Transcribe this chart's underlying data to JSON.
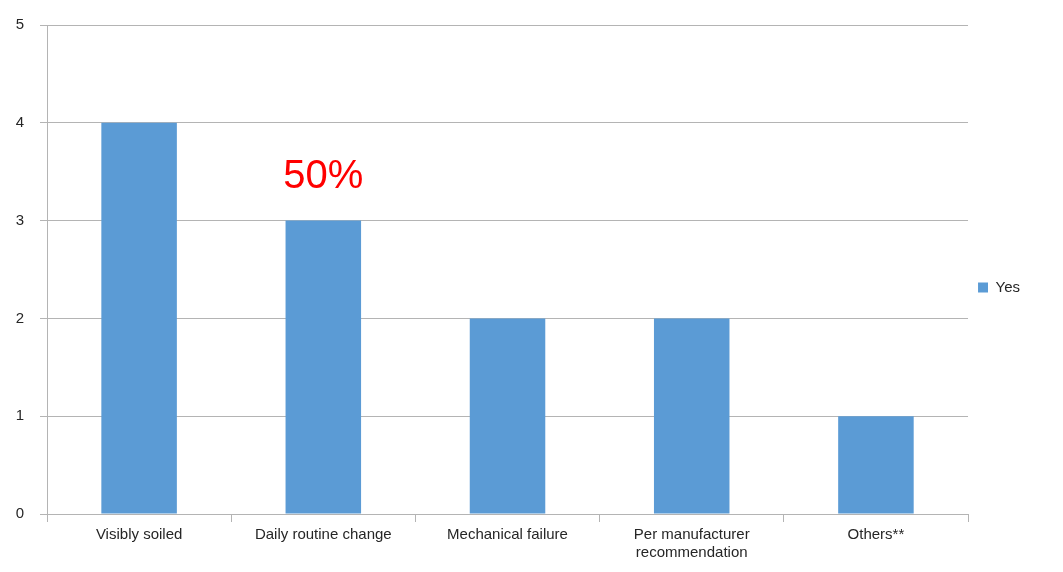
{
  "chart_data": {
    "type": "bar",
    "categories": [
      "Visibly soiled",
      "Daily routine change",
      "Mechanical failure",
      "Per manufacturer recommendation",
      "Others**"
    ],
    "series": [
      {
        "name": "Yes",
        "color": "#5b9bd5",
        "values": [
          4,
          3,
          2,
          2,
          1
        ]
      }
    ],
    "ylim": [
      0,
      5
    ],
    "yticks": [
      0,
      1,
      2,
      3,
      4,
      5
    ],
    "grid": "y",
    "legend": "right",
    "annotations": [
      "50%"
    ]
  }
}
